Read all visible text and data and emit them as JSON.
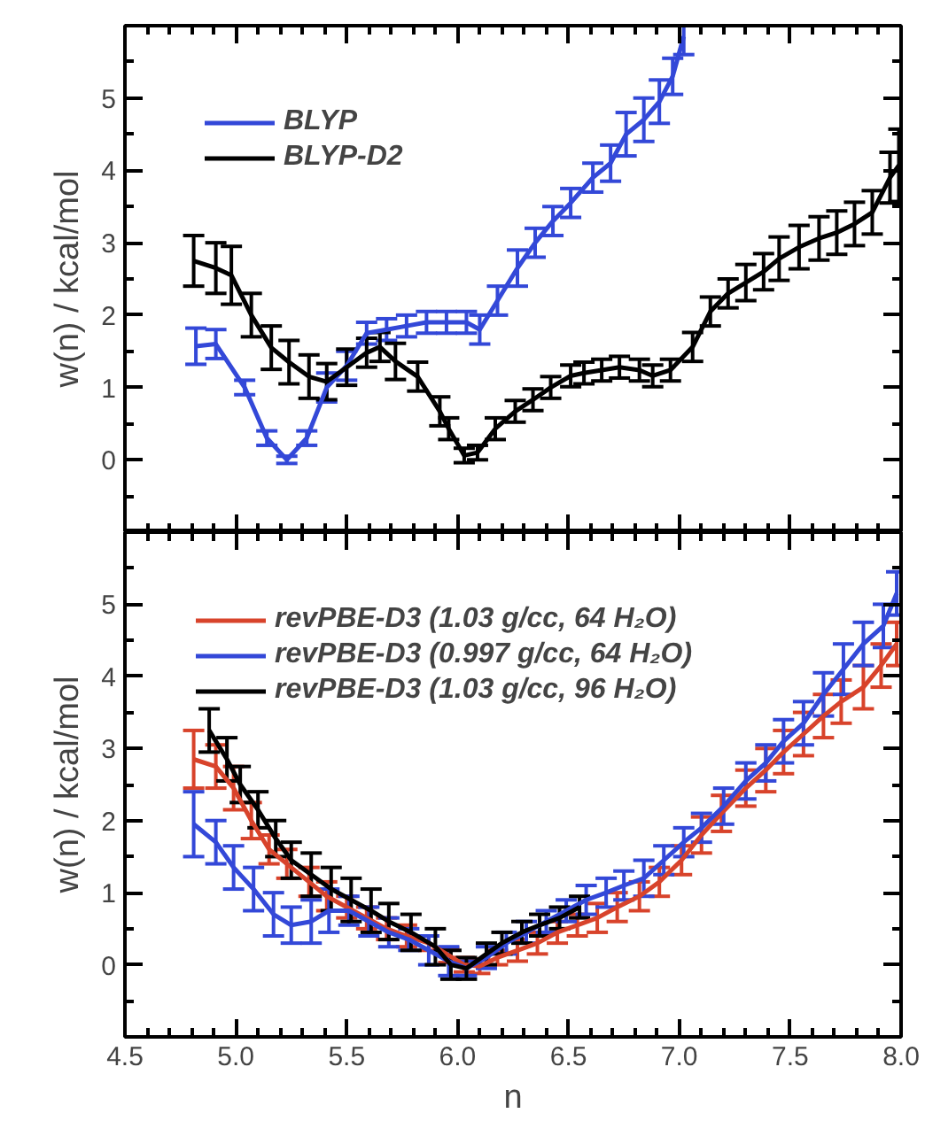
{
  "chart_data": [
    {
      "type": "line",
      "ylabel": "w(n) / kcal/mol",
      "xlim": [
        4.5,
        8.0
      ],
      "ylim": [
        -1,
        6
      ],
      "xticks": [
        4.5,
        5.0,
        5.5,
        6.0,
        6.5,
        7.0,
        7.5,
        8.0
      ],
      "yticks": [
        0,
        1,
        2,
        3,
        4,
        5
      ],
      "tick_labels": "y",
      "legend": "top left",
      "grid": false,
      "series": [
        {
          "name": "BLYP",
          "color": "#3348d8",
          "x": [
            4.82,
            4.91,
            5.04,
            5.14,
            5.23,
            5.32,
            5.41,
            5.5,
            5.59,
            5.68,
            5.77,
            5.86,
            5.95,
            6.04,
            6.1,
            6.18,
            6.27,
            6.35,
            6.43,
            6.51,
            6.61,
            6.69,
            6.76,
            6.84,
            6.91,
            6.97,
            7.02
          ],
          "values": [
            1.57,
            1.6,
            1.0,
            0.3,
            0.0,
            0.3,
            1.0,
            1.3,
            1.75,
            1.8,
            1.85,
            1.9,
            1.9,
            1.9,
            1.8,
            2.2,
            2.65,
            3.0,
            3.3,
            3.55,
            3.9,
            4.1,
            4.5,
            4.7,
            4.95,
            5.3,
            5.85
          ],
          "errors": [
            0.25,
            0.2,
            0.1,
            0.1,
            0.05,
            0.1,
            0.2,
            0.2,
            0.15,
            0.15,
            0.15,
            0.15,
            0.15,
            0.15,
            0.2,
            0.2,
            0.25,
            0.2,
            0.2,
            0.2,
            0.2,
            0.25,
            0.3,
            0.3,
            0.3,
            0.25,
            0.25
          ]
        },
        {
          "name": "BLYP-D2",
          "color": "#000000",
          "x": [
            4.81,
            4.91,
            4.98,
            5.07,
            5.16,
            5.24,
            5.33,
            5.41,
            5.5,
            5.59,
            5.65,
            5.72,
            5.82,
            5.92,
            5.96,
            6.03,
            6.09,
            6.17,
            6.26,
            6.34,
            6.42,
            6.51,
            6.57,
            6.65,
            6.73,
            6.82,
            6.88,
            6.96,
            7.06,
            7.14,
            7.22,
            7.3,
            7.38,
            7.45,
            7.54,
            7.63,
            7.71,
            7.79,
            7.87,
            7.95,
            7.99
          ],
          "values": [
            2.75,
            2.65,
            2.55,
            2.0,
            1.55,
            1.35,
            1.15,
            1.08,
            1.28,
            1.48,
            1.56,
            1.36,
            1.15,
            0.67,
            0.43,
            0.06,
            0.1,
            0.43,
            0.67,
            0.83,
            1.0,
            1.16,
            1.2,
            1.24,
            1.28,
            1.24,
            1.16,
            1.24,
            1.56,
            2.05,
            2.3,
            2.45,
            2.6,
            2.78,
            2.94,
            3.06,
            3.14,
            3.26,
            3.42,
            3.9,
            4.07
          ],
          "errors": [
            0.35,
            0.35,
            0.4,
            0.3,
            0.3,
            0.3,
            0.3,
            0.25,
            0.25,
            0.2,
            0.2,
            0.25,
            0.2,
            0.2,
            0.15,
            0.1,
            0.1,
            0.15,
            0.15,
            0.15,
            0.15,
            0.15,
            0.15,
            0.15,
            0.15,
            0.15,
            0.15,
            0.15,
            0.2,
            0.2,
            0.2,
            0.25,
            0.25,
            0.3,
            0.3,
            0.3,
            0.3,
            0.3,
            0.3,
            0.35,
            0.5
          ]
        }
      ]
    },
    {
      "type": "line",
      "xlabel": "n",
      "ylabel": "w(n) / kcal/mol",
      "xlim": [
        4.5,
        8.0
      ],
      "ylim": [
        -1,
        6
      ],
      "xticks": [
        {
          "value": 4.5,
          "label": "4.5"
        },
        {
          "value": 5.0,
          "label": "5.0"
        },
        {
          "value": 5.5,
          "label": "5.5"
        },
        {
          "value": 6.0,
          "label": "6.0"
        },
        {
          "value": 6.5,
          "label": "6.5"
        },
        {
          "value": 7.0,
          "label": "7.0"
        },
        {
          "value": 7.5,
          "label": "7.5"
        },
        {
          "value": 8.0,
          "label": "8.0"
        }
      ],
      "yticks": [
        0,
        1,
        2,
        3,
        4,
        5
      ],
      "legend": "top left",
      "grid": false,
      "series": [
        {
          "name": "revPBE-D3 (1.03 g/cc, 64 H₂O)",
          "color": "#d8432b",
          "x": [
            4.81,
            4.91,
            4.99,
            5.07,
            5.15,
            5.23,
            5.33,
            5.41,
            5.5,
            5.59,
            5.68,
            5.77,
            5.87,
            5.96,
            6.03,
            6.1,
            6.18,
            6.27,
            6.36,
            6.45,
            6.54,
            6.63,
            6.72,
            6.82,
            6.91,
            7.01,
            7.1,
            7.19,
            7.3,
            7.39,
            7.47,
            7.56,
            7.65,
            7.73,
            7.83,
            7.91,
            7.98
          ],
          "values": [
            2.85,
            2.75,
            2.45,
            2.0,
            1.6,
            1.4,
            1.15,
            0.95,
            0.8,
            0.65,
            0.5,
            0.4,
            0.3,
            0.13,
            0.0,
            -0.02,
            0.1,
            0.2,
            0.3,
            0.45,
            0.55,
            0.65,
            0.8,
            0.95,
            1.15,
            1.45,
            1.8,
            2.1,
            2.45,
            2.7,
            2.95,
            3.2,
            3.45,
            3.65,
            3.85,
            4.15,
            4.45
          ],
          "errors": [
            0.4,
            0.3,
            0.3,
            0.25,
            0.2,
            0.2,
            0.2,
            0.2,
            0.15,
            0.15,
            0.15,
            0.15,
            0.1,
            0.1,
            0.1,
            0.1,
            0.1,
            0.15,
            0.15,
            0.15,
            0.15,
            0.2,
            0.2,
            0.2,
            0.2,
            0.2,
            0.25,
            0.25,
            0.25,
            0.3,
            0.3,
            0.3,
            0.3,
            0.3,
            0.3,
            0.3,
            0.3
          ]
        },
        {
          "name": "revPBE-D3 (0.997 g/cc, 64 H₂O)",
          "color": "#3348d8",
          "x": [
            4.81,
            4.91,
            4.99,
            5.08,
            5.17,
            5.25,
            5.34,
            5.42,
            5.51,
            5.6,
            5.69,
            5.78,
            5.87,
            5.96,
            6.04,
            6.13,
            6.22,
            6.31,
            6.4,
            6.49,
            6.58,
            6.67,
            6.75,
            6.84,
            6.93,
            7.02,
            7.1,
            7.2,
            7.3,
            7.39,
            7.47,
            7.56,
            7.65,
            7.74,
            7.83,
            7.92,
            7.98
          ],
          "values": [
            1.95,
            1.7,
            1.35,
            1.05,
            0.7,
            0.55,
            0.6,
            0.75,
            0.75,
            0.6,
            0.45,
            0.35,
            0.2,
            0.05,
            -0.05,
            0.1,
            0.3,
            0.45,
            0.6,
            0.75,
            0.9,
            1.0,
            1.1,
            1.2,
            1.45,
            1.7,
            1.9,
            2.2,
            2.55,
            2.8,
            3.1,
            3.35,
            3.75,
            4.1,
            4.45,
            4.7,
            5.15
          ],
          "errors": [
            0.45,
            0.3,
            0.3,
            0.3,
            0.3,
            0.25,
            0.3,
            0.3,
            0.2,
            0.2,
            0.2,
            0.15,
            0.2,
            0.2,
            0.1,
            0.15,
            0.15,
            0.15,
            0.15,
            0.15,
            0.2,
            0.2,
            0.2,
            0.25,
            0.2,
            0.2,
            0.2,
            0.25,
            0.25,
            0.25,
            0.3,
            0.3,
            0.3,
            0.35,
            0.3,
            0.3,
            0.3
          ]
        },
        {
          "name": "revPBE-D3 (1.03 g/cc, 96 H₂O)",
          "color": "#000000",
          "x": [
            4.88,
            4.96,
            5.02,
            5.1,
            5.18,
            5.25,
            5.34,
            5.43,
            5.52,
            5.61,
            5.69,
            5.79,
            5.9,
            5.97,
            6.04,
            6.13,
            6.2,
            6.29,
            6.37,
            6.46,
            6.55
          ],
          "values": [
            3.25,
            2.85,
            2.5,
            2.15,
            1.75,
            1.45,
            1.25,
            1.05,
            0.9,
            0.75,
            0.6,
            0.45,
            0.25,
            0.0,
            -0.05,
            0.15,
            0.3,
            0.45,
            0.55,
            0.65,
            0.8
          ],
          "errors": [
            0.3,
            0.3,
            0.25,
            0.25,
            0.25,
            0.25,
            0.3,
            0.3,
            0.3,
            0.3,
            0.25,
            0.25,
            0.25,
            0.2,
            0.15,
            0.15,
            0.15,
            0.15,
            0.15,
            0.15,
            0.15
          ]
        }
      ]
    }
  ]
}
